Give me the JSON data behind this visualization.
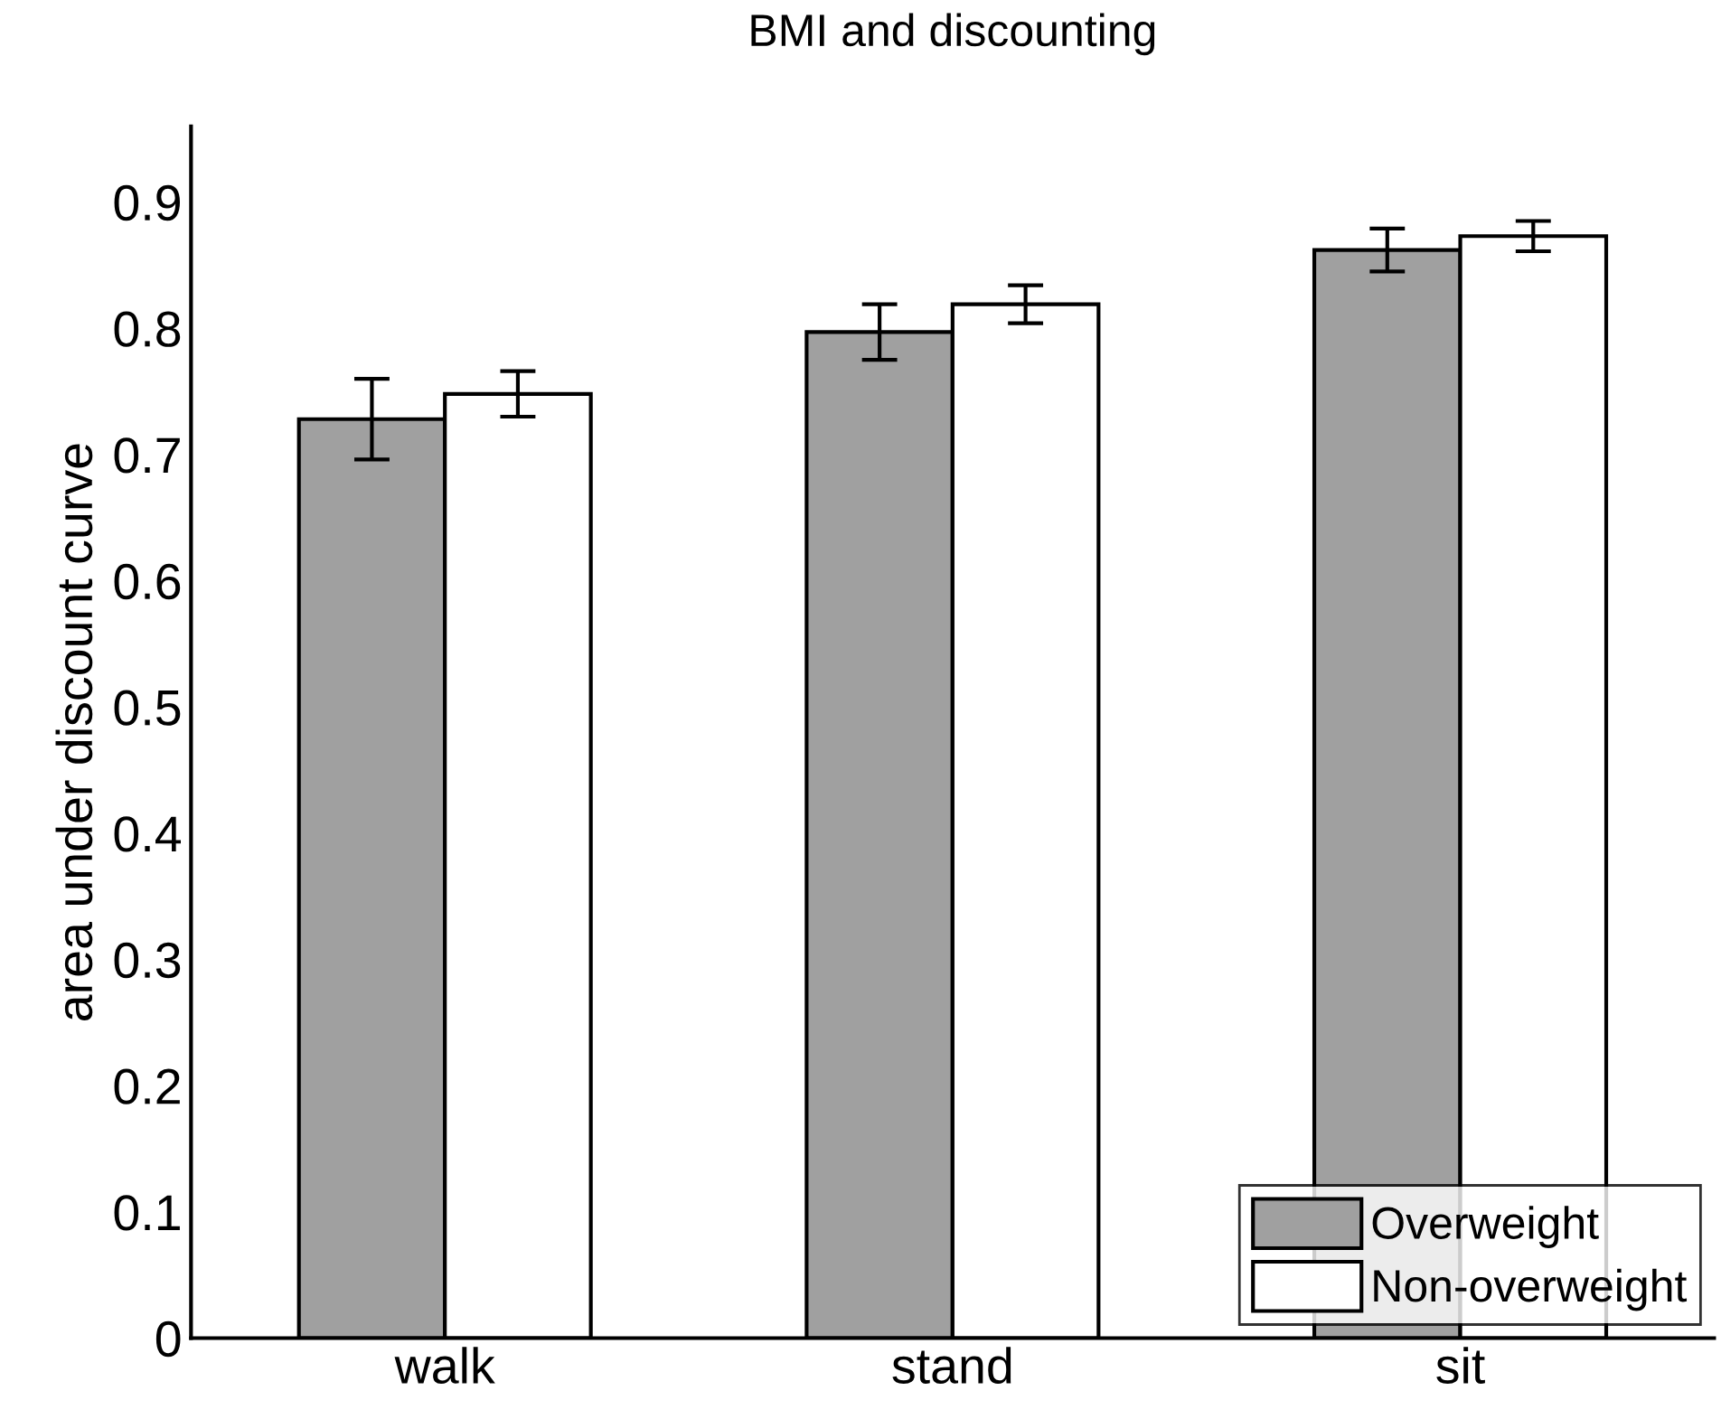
{
  "chart_data": {
    "type": "bar",
    "title": "BMI and discounting",
    "ylabel": "area under discount curve",
    "categories": [
      "walk",
      "stand",
      "sit"
    ],
    "series": [
      {
        "name": "Overweight",
        "color": "#a0a0a0",
        "values": [
          0.728,
          0.797,
          0.862
        ],
        "errors": [
          0.032,
          0.022,
          0.017
        ]
      },
      {
        "name": "Non-overweight",
        "color": "#ffffff",
        "values": [
          0.748,
          0.819,
          0.873
        ],
        "errors": [
          0.018,
          0.015,
          0.012
        ]
      }
    ],
    "ylim": [
      0,
      0.96
    ],
    "yticks": [
      0,
      0.1,
      0.2,
      0.3,
      0.4,
      0.5,
      0.6,
      0.7,
      0.8,
      0.9
    ],
    "grid": false,
    "legend": "bottom right"
  }
}
